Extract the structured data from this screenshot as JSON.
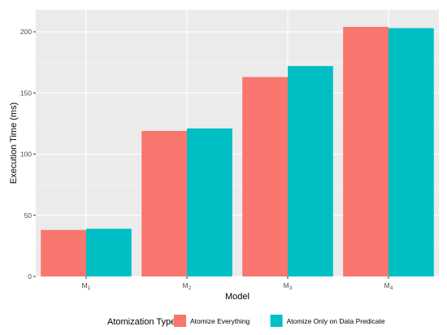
{
  "chart_data": {
    "type": "bar",
    "xlabel": "Model",
    "ylabel": "Execution Time (ms)",
    "categories": [
      {
        "base": "M",
        "sub": "1"
      },
      {
        "base": "M",
        "sub": "2"
      },
      {
        "base": "M",
        "sub": "3"
      },
      {
        "base": "M",
        "sub": "4"
      }
    ],
    "series": [
      {
        "name": "Atomize Everything",
        "color": "#F8766D",
        "values": [
          38,
          119,
          163,
          204
        ]
      },
      {
        "name": "Atomize Only on Data Predicate",
        "color": "#00BFC4",
        "values": [
          39,
          121,
          172,
          203
        ]
      }
    ],
    "ylim": [
      0,
      218
    ],
    "yticks": [
      0,
      50,
      100,
      150,
      200
    ],
    "grid": true,
    "legend": {
      "title": "Atomization Type",
      "position": "bottom"
    }
  }
}
